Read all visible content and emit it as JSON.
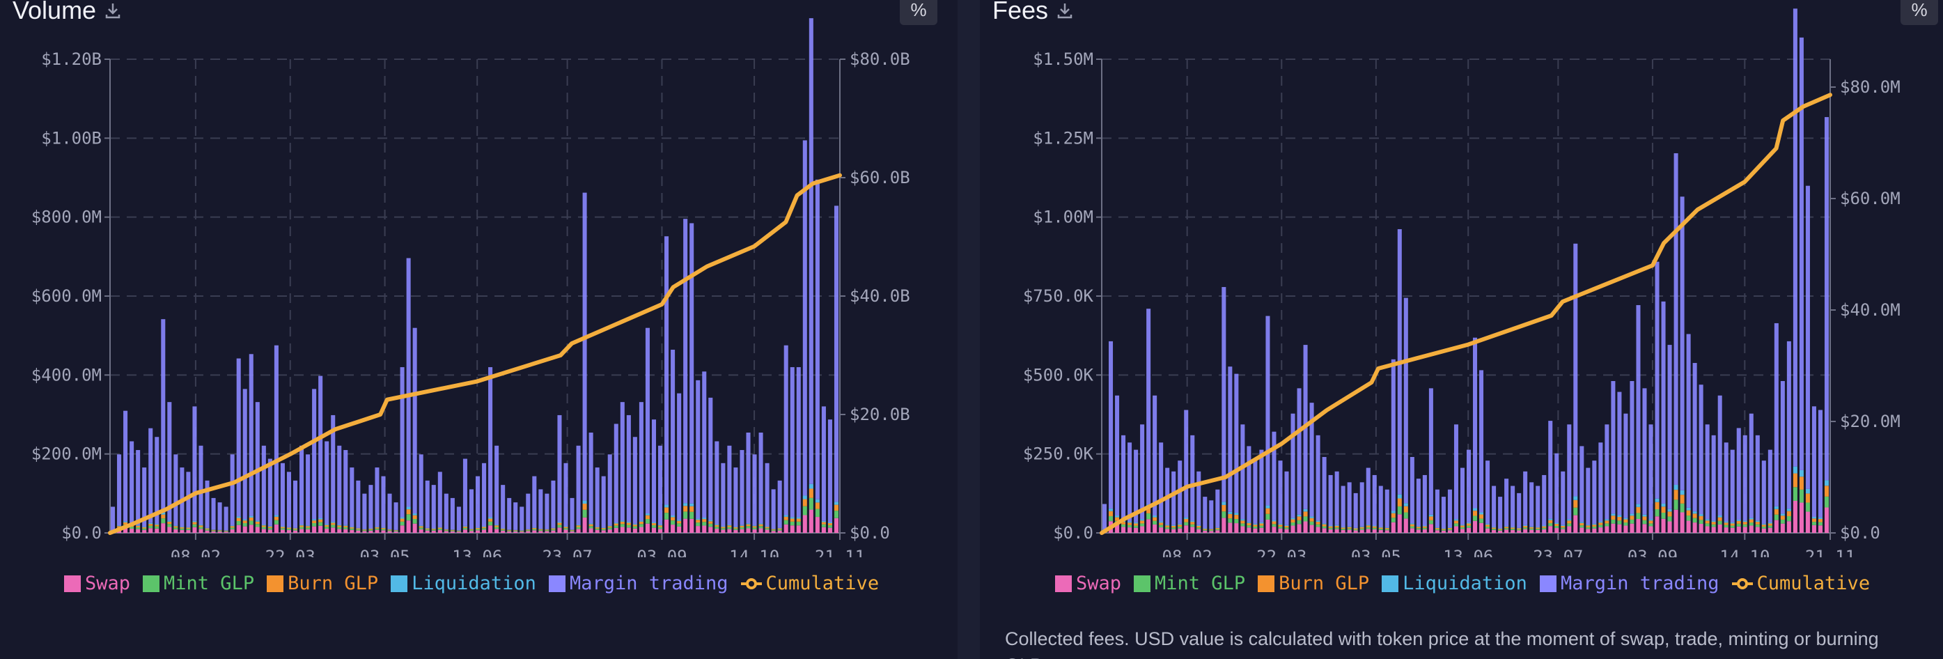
{
  "chart_data": [
    {
      "id": "volume",
      "type": "bar",
      "title": "Volume",
      "percent_label": "%",
      "stacked": true,
      "x_domain_days": [
        0,
        324
      ],
      "x_ticks": [
        {
          "day": 38,
          "label": "08.02"
        },
        {
          "day": 80,
          "label": "22.03"
        },
        {
          "day": 122,
          "label": "03.05"
        },
        {
          "day": 163,
          "label": "13.06"
        },
        {
          "day": 203,
          "label": "23.07"
        },
        {
          "day": 245,
          "label": "03.09"
        },
        {
          "day": 286,
          "label": "14.10"
        },
        {
          "day": 324,
          "label": "21.11"
        }
      ],
      "y_left": {
        "unit": "$M",
        "ylim": [
          0,
          1200
        ],
        "ticks": [
          {
            "v": 0,
            "label": "$0.0"
          },
          {
            "v": 200,
            "label": "$200.0M"
          },
          {
            "v": 400,
            "label": "$400.0M"
          },
          {
            "v": 600,
            "label": "$600.0M"
          },
          {
            "v": 800,
            "label": "$800.0M"
          },
          {
            "v": 1000,
            "label": "$1.00B"
          },
          {
            "v": 1200,
            "label": "$1.20B"
          }
        ]
      },
      "y_right": {
        "unit": "$B",
        "ylim": [
          0,
          80
        ],
        "ticks": [
          {
            "v": 0,
            "label": "$0.0"
          },
          {
            "v": 20,
            "label": "$20.0B"
          },
          {
            "v": 40,
            "label": "$40.0B"
          },
          {
            "v": 60,
            "label": "$60.0B"
          },
          {
            "v": 80,
            "label": "$80.0B"
          }
        ]
      },
      "margin_trading": [
        60,
        180,
        280,
        210,
        190,
        150,
        240,
        220,
        490,
        300,
        180,
        150,
        140,
        290,
        200,
        120,
        80,
        70,
        60,
        180,
        400,
        330,
        410,
        300,
        200,
        170,
        430,
        160,
        140,
        120,
        200,
        180,
        330,
        360,
        210,
        270,
        200,
        190,
        150,
        120,
        90,
        110,
        150,
        130,
        90,
        70,
        380,
        630,
        470,
        180,
        120,
        110,
        140,
        90,
        80,
        60,
        170,
        100,
        130,
        160,
        380,
        200,
        110,
        80,
        70,
        60,
        90,
        130,
        100,
        90,
        120,
        270,
        160,
        80,
        200,
        780,
        230,
        150,
        130,
        180,
        250,
        300,
        270,
        220,
        300,
        470,
        260,
        200,
        680,
        420,
        320,
        720,
        710,
        350,
        370,
        310,
        210,
        160,
        200,
        150,
        190,
        230,
        180,
        230,
        160,
        100,
        120,
        430,
        380,
        380,
        900,
        1180,
        810,
        290,
        260,
        750
      ],
      "other_shares": {
        "swap": 0.05,
        "mint_glp": 0.025,
        "burn_glp": 0.02,
        "liquidation": 0.01
      },
      "cumulative": [
        [
          0,
          0
        ],
        [
          10,
          1.5
        ],
        [
          25,
          4
        ],
        [
          38,
          6.7
        ],
        [
          55,
          8.5
        ],
        [
          80,
          13.3
        ],
        [
          100,
          17.5
        ],
        [
          120,
          20
        ],
        [
          123,
          22.5
        ],
        [
          163,
          25.6
        ],
        [
          200,
          30
        ],
        [
          205,
          32
        ],
        [
          245,
          38.6
        ],
        [
          250,
          41.5
        ],
        [
          265,
          45
        ],
        [
          286,
          48.4
        ],
        [
          300,
          52.5
        ],
        [
          305,
          57
        ],
        [
          312,
          59
        ],
        [
          324,
          60.4
        ]
      ],
      "legend": [
        "Swap",
        "Mint GLP",
        "Burn GLP",
        "Liquidation",
        "Margin trading",
        "Cumulative"
      ]
    },
    {
      "id": "fees",
      "type": "bar",
      "title": "Fees",
      "percent_label": "%",
      "stacked": true,
      "x_domain_days": [
        0,
        324
      ],
      "x_ticks": [
        {
          "day": 38,
          "label": "08.02"
        },
        {
          "day": 80,
          "label": "22.03"
        },
        {
          "day": 122,
          "label": "03.05"
        },
        {
          "day": 163,
          "label": "13.06"
        },
        {
          "day": 203,
          "label": "23.07"
        },
        {
          "day": 245,
          "label": "03.09"
        },
        {
          "day": 286,
          "label": "14.10"
        },
        {
          "day": 324,
          "label": "21.11"
        }
      ],
      "y_left": {
        "unit": "$K",
        "ylim": [
          0,
          1500
        ],
        "ticks": [
          {
            "v": 0,
            "label": "$0.0"
          },
          {
            "v": 250,
            "label": "$250.0K"
          },
          {
            "v": 500,
            "label": "$500.0K"
          },
          {
            "v": 750,
            "label": "$750.0K"
          },
          {
            "v": 1000,
            "label": "$1.00M"
          },
          {
            "v": 1250,
            "label": "$1.25M"
          },
          {
            "v": 1500,
            "label": "$1.50M"
          }
        ]
      },
      "y_right": {
        "unit": "$M",
        "ylim": [
          0,
          85
        ],
        "ticks": [
          {
            "v": 0,
            "label": "$0.0"
          },
          {
            "v": 20,
            "label": "$20.0M"
          },
          {
            "v": 40,
            "label": "$40.0M"
          },
          {
            "v": 60,
            "label": "$60.0M"
          },
          {
            "v": 80,
            "label": "$80.0M"
          }
        ]
      },
      "margin_trading": [
        80,
        530,
        380,
        270,
        250,
        230,
        300,
        620,
        380,
        250,
        180,
        170,
        200,
        340,
        270,
        170,
        100,
        90,
        120,
        680,
        460,
        440,
        300,
        240,
        200,
        230,
        600,
        280,
        200,
        170,
        330,
        400,
        520,
        360,
        270,
        210,
        160,
        170,
        130,
        140,
        110,
        140,
        180,
        160,
        130,
        120,
        480,
        840,
        650,
        210,
        150,
        160,
        400,
        120,
        100,
        120,
        300,
        180,
        230,
        540,
        450,
        200,
        130,
        100,
        150,
        130,
        110,
        170,
        140,
        130,
        160,
        310,
        220,
        170,
        300,
        800,
        240,
        180,
        200,
        250,
        300,
        420,
        390,
        330,
        420,
        630,
        400,
        300,
        750,
        640,
        520,
        1050,
        930,
        550,
        470,
        410,
        300,
        270,
        380,
        250,
        230,
        290,
        270,
        330,
        270,
        200,
        230,
        580,
        420,
        530,
        1450,
        1370,
        960,
        350,
        340,
        1150
      ],
      "other_shares": {
        "swap": 0.07,
        "mint_glp": 0.03,
        "burn_glp": 0.03,
        "liquidation": 0.015
      },
      "cumulative": [
        [
          0,
          0
        ],
        [
          10,
          2.5
        ],
        [
          25,
          5.5
        ],
        [
          38,
          8.3
        ],
        [
          55,
          10
        ],
        [
          80,
          16
        ],
        [
          100,
          22
        ],
        [
          120,
          27
        ],
        [
          123,
          29.5
        ],
        [
          163,
          33.8
        ],
        [
          200,
          39
        ],
        [
          205,
          41.5
        ],
        [
          245,
          48
        ],
        [
          250,
          52
        ],
        [
          265,
          58
        ],
        [
          286,
          63
        ],
        [
          300,
          69
        ],
        [
          303,
          74
        ],
        [
          312,
          76.5
        ],
        [
          324,
          78.6
        ]
      ],
      "legend": [
        "Swap",
        "Mint GLP",
        "Burn GLP",
        "Liquidation",
        "Margin trading",
        "Cumulative"
      ]
    }
  ],
  "colors": {
    "swap": "#ec6ab8",
    "mint_glp": "#5cc46a",
    "burn_glp": "#f3922f",
    "liquidation": "#52b9e6",
    "margin_trading": "#8a87ff",
    "cumulative": "#f4ae3d",
    "axis_text": "#a3a6ba",
    "grid": "#3a3d52"
  },
  "fees_note": "Collected fees. USD value is calculated with token price at the moment of swap, trade, minting or burning GLP."
}
